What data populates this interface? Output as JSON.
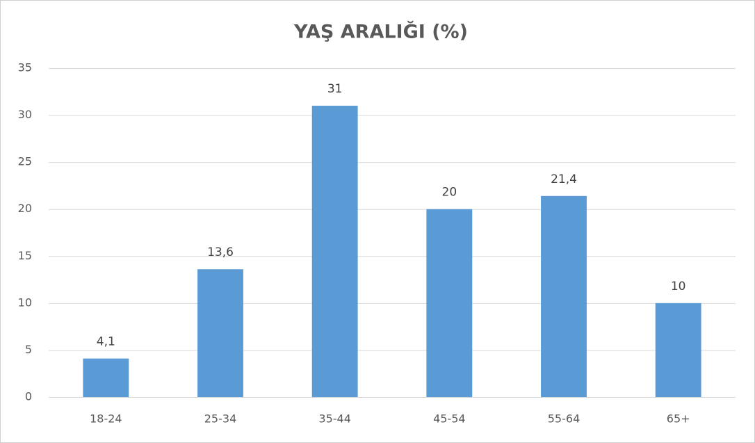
{
  "chart_data": {
    "type": "bar",
    "title": "YAŞ ARALIĞI (%)",
    "categories": [
      "18-24",
      "25-34",
      "35-44",
      "45-54",
      "55-64",
      "65+"
    ],
    "values": [
      4.1,
      13.6,
      31,
      20,
      21.4,
      10
    ],
    "value_labels": [
      "4,1",
      "13,6",
      "31",
      "20",
      "21,4",
      "10"
    ],
    "color": "#5b9bd5",
    "ylim": [
      0,
      35
    ],
    "yticks": [
      0,
      5,
      10,
      15,
      20,
      25,
      30,
      35
    ],
    "grid": true
  }
}
